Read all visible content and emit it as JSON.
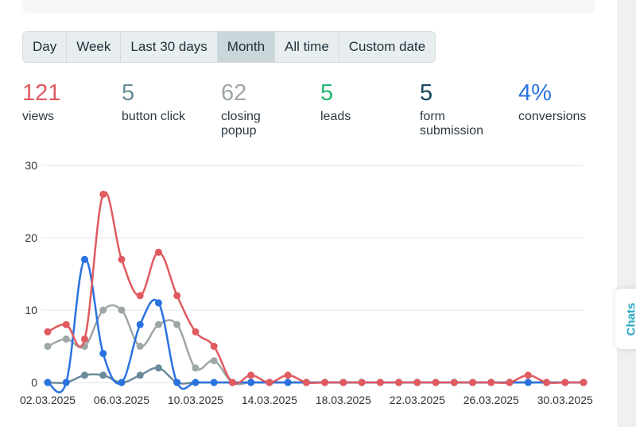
{
  "tabs": [
    {
      "label": "Day",
      "active": false
    },
    {
      "label": "Week",
      "active": false
    },
    {
      "label": "Last 30 days",
      "active": false
    },
    {
      "label": "Month",
      "active": true
    },
    {
      "label": "All time",
      "active": false
    },
    {
      "label": "Custom date",
      "active": false
    }
  ],
  "stats": [
    {
      "value": "121",
      "label": "views",
      "color": "#e05a5f"
    },
    {
      "value": "5",
      "label": "button click",
      "color": "#6a8b9a"
    },
    {
      "value": "62",
      "label": "closing popup",
      "color": "#9ea7a5"
    },
    {
      "value": "5",
      "label": "leads",
      "color": "#25b36f"
    },
    {
      "value": "5",
      "label": "form submission",
      "color": "#12445a"
    },
    {
      "value": "4%",
      "label": "conversions",
      "color": "#2a72e0"
    }
  ],
  "chats_label": "Chats",
  "chart_data": {
    "type": "line",
    "x": [
      "02.03.2025",
      "03.03.2025",
      "04.03.2025",
      "05.03.2025",
      "06.03.2025",
      "07.03.2025",
      "08.03.2025",
      "09.03.2025",
      "10.03.2025",
      "11.03.2025",
      "12.03.2025",
      "13.03.2025",
      "14.03.2025",
      "15.03.2025",
      "16.03.2025",
      "17.03.2025",
      "18.03.2025",
      "19.03.2025",
      "20.03.2025",
      "21.03.2025",
      "22.03.2025",
      "23.03.2025",
      "24.03.2025",
      "25.03.2025",
      "26.03.2025",
      "27.03.2025",
      "28.03.2025",
      "29.03.2025",
      "30.03.2025",
      "31.03.2025"
    ],
    "xtick_labels": [
      "02.03.2025",
      "06.03.2025",
      "10.03.2025",
      "14.03.2025",
      "18.03.2025",
      "22.03.2025",
      "26.03.2025",
      "30.03.2025"
    ],
    "yticks": [
      0,
      10,
      20,
      30
    ],
    "ylim": [
      0,
      30
    ],
    "grid": true,
    "series": [
      {
        "color": "#9ea7a5",
        "values": [
          5,
          6,
          5,
          10,
          10,
          5,
          8,
          8,
          2,
          3,
          0,
          0,
          0,
          0,
          0,
          0,
          0,
          0,
          0,
          0,
          0,
          0,
          0,
          0,
          0,
          0,
          0,
          0,
          0,
          0
        ]
      },
      {
        "color": "#6a8b9a",
        "values": [
          0,
          0,
          1,
          1,
          0,
          1,
          2,
          0,
          0,
          0,
          0,
          0,
          0,
          0,
          0,
          0,
          0,
          0,
          0,
          0,
          0,
          0,
          0,
          0,
          0,
          0,
          0,
          0,
          0,
          0
        ]
      },
      {
        "color": "#2a72e0",
        "values": [
          0,
          0,
          17,
          4,
          0,
          8,
          11,
          0,
          0,
          0,
          0,
          0,
          0,
          0,
          0,
          0,
          0,
          0,
          0,
          0,
          0,
          0,
          0,
          0,
          0,
          0,
          0,
          0,
          0,
          0
        ]
      },
      {
        "color": "#e05a5f",
        "values": [
          7,
          8,
          6,
          26,
          17,
          12,
          18,
          12,
          7,
          5,
          0,
          1,
          0,
          1,
          0,
          0,
          0,
          0,
          0,
          0,
          0,
          0,
          0,
          0,
          0,
          0,
          1,
          0,
          0,
          0
        ]
      }
    ]
  }
}
